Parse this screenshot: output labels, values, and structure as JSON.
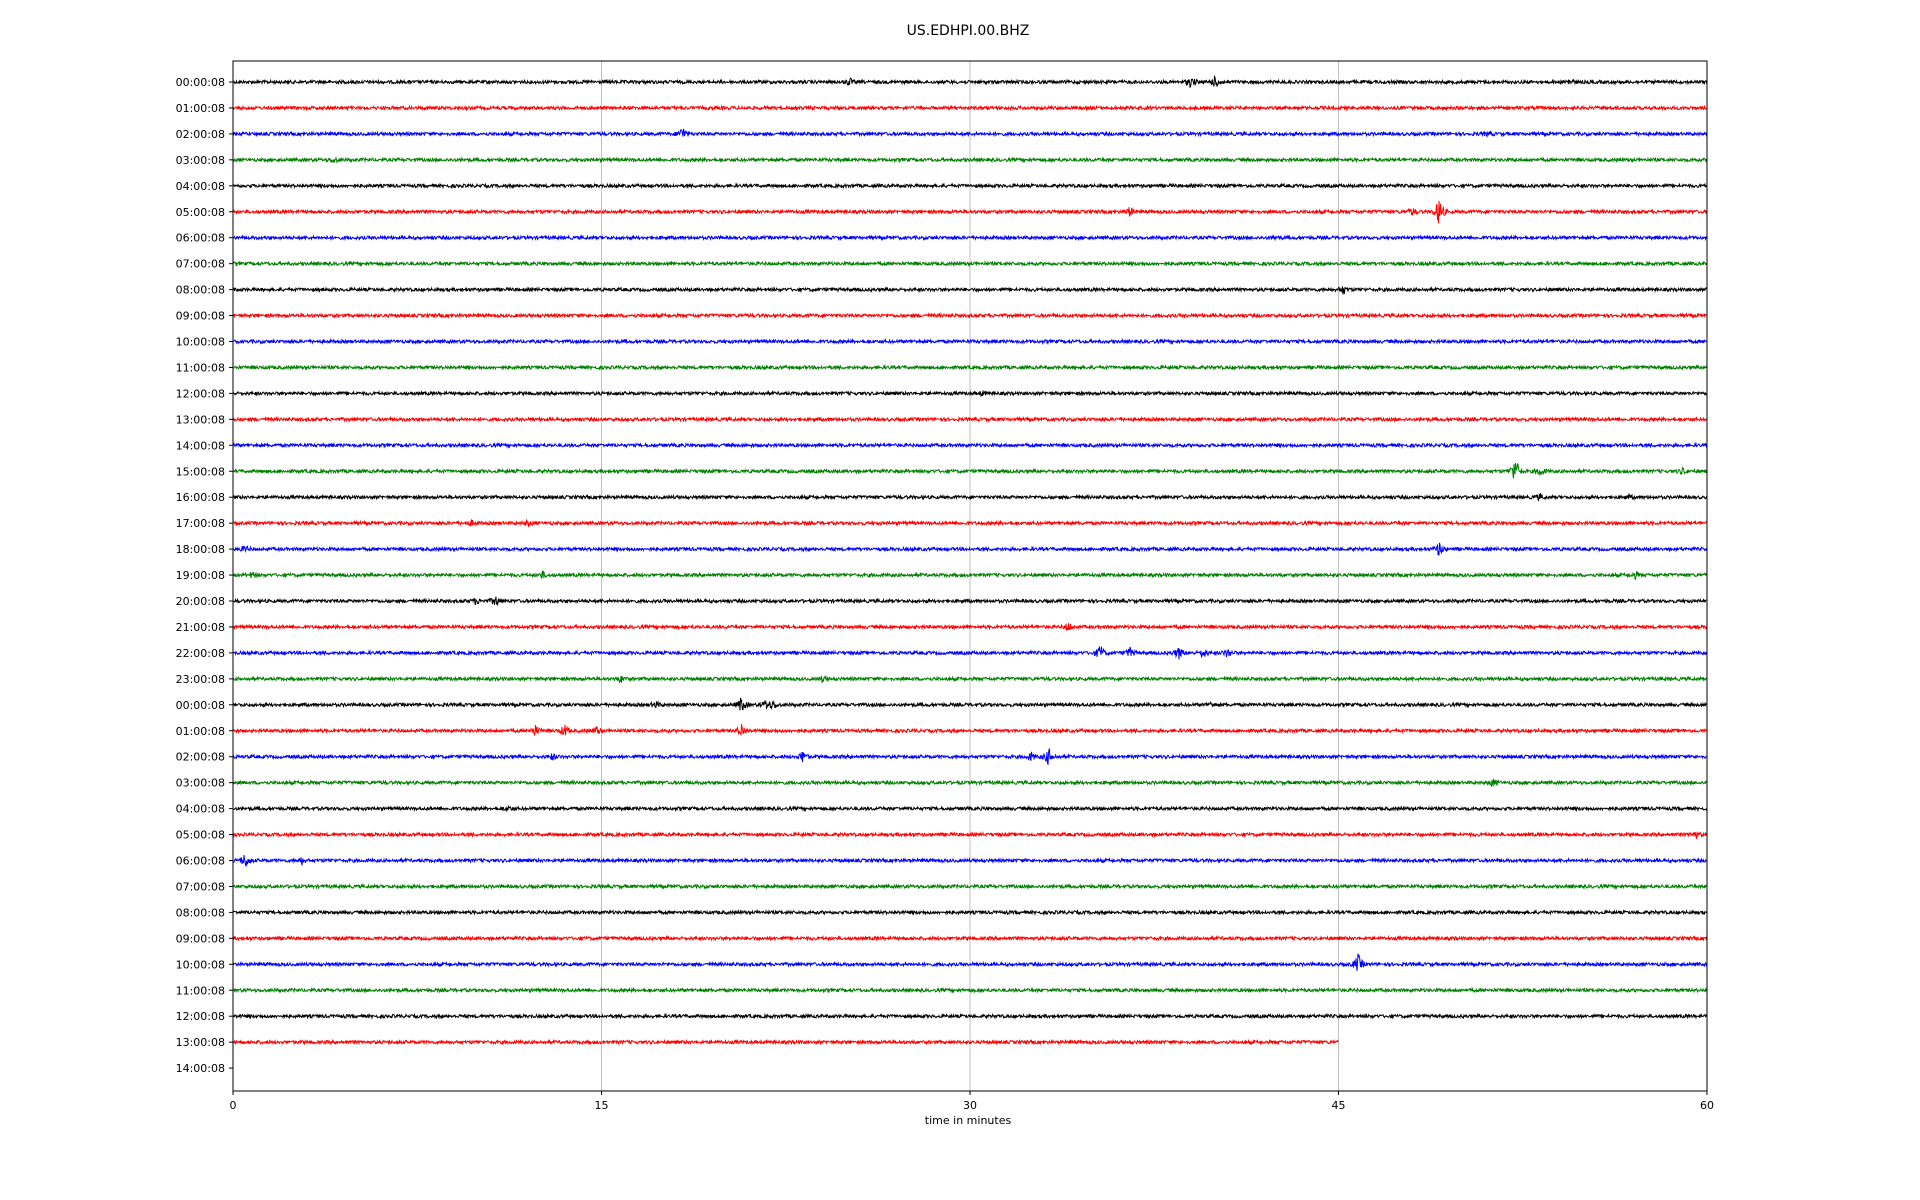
{
  "chart_data": {
    "type": "line",
    "title": "US.EDHPI.00.BHZ",
    "xlabel": "time in minutes",
    "ylabel": "",
    "xlim": [
      0,
      60
    ],
    "xticks": [
      "0",
      "15",
      "30",
      "45",
      "60"
    ],
    "grid": "vertical",
    "trace_colors": [
      "#000000",
      "#ff0000",
      "#0000ff",
      "#008000"
    ],
    "row_labels": [
      "00:00:08",
      "01:00:08",
      "02:00:08",
      "03:00:08",
      "04:00:08",
      "05:00:08",
      "06:00:08",
      "07:00:08",
      "08:00:08",
      "09:00:08",
      "10:00:08",
      "11:00:08",
      "12:00:08",
      "13:00:08",
      "14:00:08",
      "15:00:08",
      "16:00:08",
      "17:00:08",
      "18:00:08",
      "19:00:08",
      "20:00:08",
      "21:00:08",
      "22:00:08",
      "23:00:08",
      "00:00:08",
      "01:00:08",
      "02:00:08",
      "03:00:08",
      "04:00:08",
      "05:00:08",
      "06:00:08",
      "07:00:08",
      "08:00:08",
      "09:00:08",
      "10:00:08",
      "11:00:08",
      "12:00:08",
      "13:00:08",
      "14:00:08"
    ],
    "trace_end_minutes": [
      60,
      60,
      60,
      60,
      60,
      60,
      60,
      60,
      60,
      60,
      60,
      60,
      60,
      60,
      60,
      60,
      60,
      60,
      60,
      60,
      60,
      60,
      60,
      60,
      60,
      60,
      60,
      60,
      60,
      60,
      60,
      60,
      60,
      60,
      60,
      60,
      60,
      45,
      0
    ],
    "events": [
      {
        "row": 0,
        "minute": 25.1,
        "amp": 0.35
      },
      {
        "row": 0,
        "minute": 39.0,
        "amp": 0.55
      },
      {
        "row": 0,
        "minute": 40.0,
        "amp": 0.6
      },
      {
        "row": 0,
        "minute": 54.4,
        "amp": 0.25
      },
      {
        "row": 2,
        "minute": 18.3,
        "amp": 0.75
      },
      {
        "row": 2,
        "minute": 51.1,
        "amp": 0.2
      },
      {
        "row": 3,
        "minute": 4.1,
        "amp": 0.3
      },
      {
        "row": 5,
        "minute": 36.5,
        "amp": 0.45
      },
      {
        "row": 5,
        "minute": 48.0,
        "amp": 0.35
      },
      {
        "row": 5,
        "minute": 49.1,
        "amp": 1.5
      },
      {
        "row": 6,
        "minute": 42.4,
        "amp": 0.25
      },
      {
        "row": 8,
        "minute": 45.2,
        "amp": 0.45
      },
      {
        "row": 12,
        "minute": 30.5,
        "amp": 0.2
      },
      {
        "row": 15,
        "minute": 52.2,
        "amp": 1.5
      },
      {
        "row": 15,
        "minute": 53.2,
        "amp": 0.45
      },
      {
        "row": 15,
        "minute": 59.0,
        "amp": 0.3
      },
      {
        "row": 16,
        "minute": 53.2,
        "amp": 0.3
      },
      {
        "row": 16,
        "minute": 56.8,
        "amp": 0.25
      },
      {
        "row": 17,
        "minute": 9.7,
        "amp": 0.25
      },
      {
        "row": 17,
        "minute": 12.0,
        "amp": 0.3
      },
      {
        "row": 18,
        "minute": 0.5,
        "amp": 0.3
      },
      {
        "row": 18,
        "minute": 49.1,
        "amp": 0.7
      },
      {
        "row": 19,
        "minute": 0.8,
        "amp": 0.3
      },
      {
        "row": 19,
        "minute": 12.6,
        "amp": 0.3
      },
      {
        "row": 19,
        "minute": 57.1,
        "amp": 0.3
      },
      {
        "row": 20,
        "minute": 9.9,
        "amp": 0.3
      },
      {
        "row": 20,
        "minute": 10.7,
        "amp": 0.55
      },
      {
        "row": 21,
        "minute": 34.0,
        "amp": 0.4
      },
      {
        "row": 22,
        "minute": 35.3,
        "amp": 0.8
      },
      {
        "row": 22,
        "minute": 36.5,
        "amp": 0.5
      },
      {
        "row": 22,
        "minute": 38.5,
        "amp": 0.6
      },
      {
        "row": 22,
        "minute": 39.5,
        "amp": 0.5
      },
      {
        "row": 22,
        "minute": 40.5,
        "amp": 0.45
      },
      {
        "row": 23,
        "minute": 15.8,
        "amp": 0.3
      },
      {
        "row": 23,
        "minute": 24.0,
        "amp": 0.25
      },
      {
        "row": 24,
        "minute": 17.2,
        "amp": 0.3
      },
      {
        "row": 24,
        "minute": 20.7,
        "amp": 0.8
      },
      {
        "row": 24,
        "minute": 21.7,
        "amp": 0.45
      },
      {
        "row": 24,
        "minute": 22.0,
        "amp": 0.35
      },
      {
        "row": 24,
        "minute": 39.8,
        "amp": 0.25
      },
      {
        "row": 25,
        "minute": 12.3,
        "amp": 0.55
      },
      {
        "row": 25,
        "minute": 13.5,
        "amp": 0.6
      },
      {
        "row": 25,
        "minute": 14.8,
        "amp": 0.45
      },
      {
        "row": 25,
        "minute": 20.7,
        "amp": 0.7
      },
      {
        "row": 26,
        "minute": 13.0,
        "amp": 0.3
      },
      {
        "row": 26,
        "minute": 23.2,
        "amp": 0.6
      },
      {
        "row": 26,
        "minute": 32.5,
        "amp": 0.4
      },
      {
        "row": 26,
        "minute": 33.2,
        "amp": 0.9
      },
      {
        "row": 27,
        "minute": 51.3,
        "amp": 0.35
      },
      {
        "row": 28,
        "minute": 11.2,
        "amp": 0.25
      },
      {
        "row": 29,
        "minute": 59.5,
        "amp": 0.45
      },
      {
        "row": 30,
        "minute": 0.5,
        "amp": 0.8
      },
      {
        "row": 30,
        "minute": 2.8,
        "amp": 0.35
      },
      {
        "row": 34,
        "minute": 45.8,
        "amp": 1.0
      }
    ]
  }
}
